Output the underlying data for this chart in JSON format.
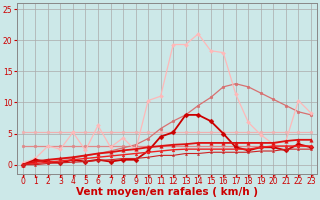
{
  "x": [
    0,
    1,
    2,
    3,
    4,
    5,
    6,
    7,
    8,
    9,
    10,
    11,
    12,
    13,
    14,
    15,
    16,
    17,
    18,
    19,
    20,
    21,
    22,
    23
  ],
  "series": [
    {
      "name": "flat_5_very_light_pink",
      "color": "#f0b0b0",
      "linewidth": 0.9,
      "marker": "o",
      "markersize": 2.0,
      "y": [
        5.2,
        5.2,
        5.2,
        5.2,
        5.2,
        5.2,
        5.2,
        5.2,
        5.2,
        5.2,
        5.2,
        5.2,
        5.2,
        5.2,
        5.2,
        5.2,
        5.2,
        5.2,
        5.2,
        5.2,
        5.2,
        5.2,
        5.2,
        5.2
      ]
    },
    {
      "name": "flat_3_light_pink",
      "color": "#e08888",
      "linewidth": 0.9,
      "marker": "o",
      "markersize": 2.0,
      "y": [
        3.0,
        3.0,
        3.0,
        3.0,
        3.0,
        3.0,
        3.0,
        3.0,
        3.0,
        3.0,
        3.0,
        3.0,
        3.0,
        3.0,
        3.0,
        3.0,
        3.0,
        3.0,
        3.0,
        3.0,
        3.0,
        3.0,
        3.0,
        3.0
      ]
    },
    {
      "name": "rising_diagonal_pink",
      "color": "#d87070",
      "linewidth": 0.9,
      "marker": "o",
      "markersize": 2.0,
      "y": [
        0.0,
        0.4,
        0.7,
        0.9,
        1.1,
        1.4,
        1.8,
        2.2,
        2.7,
        3.2,
        4.2,
        5.8,
        7.0,
        8.0,
        9.5,
        10.8,
        12.5,
        13.0,
        12.5,
        11.5,
        10.5,
        9.5,
        8.5,
        8.0
      ]
    },
    {
      "name": "spiky_very_light_pink",
      "color": "#ffb8b8",
      "linewidth": 0.9,
      "marker": "D",
      "markersize": 2.0,
      "y": [
        0.3,
        1.0,
        3.0,
        2.5,
        5.2,
        2.3,
        6.3,
        2.8,
        4.3,
        2.3,
        10.3,
        11.0,
        19.3,
        19.3,
        21.0,
        18.3,
        18.0,
        11.3,
        6.8,
        4.8,
        3.3,
        3.8,
        10.3,
        8.3
      ]
    },
    {
      "name": "dark_red_hump",
      "color": "#cc0000",
      "linewidth": 1.3,
      "marker": "D",
      "markersize": 2.5,
      "y": [
        0.0,
        0.8,
        0.5,
        0.3,
        0.8,
        0.5,
        0.8,
        0.5,
        0.8,
        0.8,
        2.2,
        4.5,
        5.2,
        8.0,
        8.0,
        7.0,
        5.0,
        2.8,
        2.3,
        2.8,
        2.8,
        2.3,
        3.3,
        2.8
      ]
    },
    {
      "name": "dark_red_rising1",
      "color": "#dd1111",
      "linewidth": 1.3,
      "marker": "^",
      "markersize": 2.5,
      "y": [
        0.0,
        0.5,
        0.8,
        1.0,
        1.2,
        1.5,
        1.8,
        2.0,
        2.3,
        2.5,
        2.8,
        3.0,
        3.2,
        3.3,
        3.5,
        3.5,
        3.5,
        3.5,
        3.5,
        3.5,
        3.5,
        3.8,
        4.0,
        4.0
      ]
    },
    {
      "name": "dark_red_rising2",
      "color": "#ee2222",
      "linewidth": 1.0,
      "marker": "^",
      "markersize": 2.0,
      "y": [
        0.0,
        0.2,
        0.4,
        0.6,
        0.8,
        1.0,
        1.2,
        1.4,
        1.6,
        1.8,
        2.0,
        2.2,
        2.4,
        2.5,
        2.5,
        2.5,
        2.5,
        2.5,
        2.5,
        2.8,
        3.0,
        3.0,
        3.0,
        3.0
      ]
    },
    {
      "name": "lowest_red",
      "color": "#cc2222",
      "linewidth": 0.8,
      "marker": "^",
      "markersize": 1.5,
      "y": [
        0.0,
        0.0,
        0.2,
        0.3,
        0.4,
        0.5,
        0.7,
        0.8,
        1.0,
        1.0,
        1.2,
        1.5,
        1.5,
        1.8,
        1.8,
        2.0,
        2.0,
        2.0,
        2.0,
        2.2,
        2.2,
        2.5,
        2.5,
        2.5
      ]
    }
  ],
  "xlabel": "Vent moyen/en rafales ( km/h )",
  "xlim": [
    -0.5,
    23.5
  ],
  "ylim": [
    -1.5,
    26
  ],
  "yticks": [
    0,
    5,
    10,
    15,
    20,
    25
  ],
  "xticks": [
    0,
    1,
    2,
    3,
    4,
    5,
    6,
    7,
    8,
    9,
    10,
    11,
    12,
    13,
    14,
    15,
    16,
    17,
    18,
    19,
    20,
    21,
    22,
    23
  ],
  "bg_color": "#cce8e8",
  "grid_color": "#b0d8d8",
  "grid_major_color": "#aaaaaa",
  "tick_color": "#cc0000",
  "xlabel_color": "#cc0000",
  "label_fontsize": 5.5,
  "xlabel_fontsize": 7.5
}
